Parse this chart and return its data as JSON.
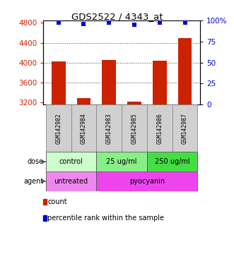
{
  "title": "GDS2522 / 4343_at",
  "samples": [
    "GSM142982",
    "GSM142984",
    "GSM142983",
    "GSM142985",
    "GSM142986",
    "GSM142987"
  ],
  "counts": [
    4020,
    3290,
    4060,
    3215,
    4040,
    4490
  ],
  "percentile_ranks": [
    97,
    96,
    97,
    95,
    97.5,
    97.5
  ],
  "ylim_left": [
    3160,
    4850
  ],
  "ylim_right": [
    0,
    100
  ],
  "yticks_left": [
    3200,
    3600,
    4000,
    4400,
    4800
  ],
  "yticks_right": [
    0,
    25,
    50,
    75,
    100
  ],
  "ytick_labels_right": [
    "0",
    "25",
    "50",
    "75",
    "100%"
  ],
  "bar_color": "#cc2200",
  "dot_color": "#0000cc",
  "dose_groups": [
    {
      "label": "control",
      "start": 0,
      "end": 2,
      "color": "#ccffcc"
    },
    {
      "label": "25 ug/ml",
      "start": 2,
      "end": 4,
      "color": "#88ee88"
    },
    {
      "label": "250 ug/ml",
      "start": 4,
      "end": 6,
      "color": "#44dd44"
    }
  ],
  "agent_groups": [
    {
      "label": "untreated",
      "start": 0,
      "end": 2,
      "color": "#ee88ee"
    },
    {
      "label": "pyocyanin",
      "start": 2,
      "end": 6,
      "color": "#ee44ee"
    }
  ],
  "dose_label": "dose",
  "agent_label": "agent",
  "legend_count_label": "count",
  "legend_pct_label": "percentile rank within the sample",
  "tick_label_color_left": "#cc2200",
  "tick_label_color_right": "#0000cc",
  "sample_bg_color": "#d0d0d0",
  "gridline_style": ":",
  "gridline_color": "#444444",
  "gridline_lw": 0.7
}
